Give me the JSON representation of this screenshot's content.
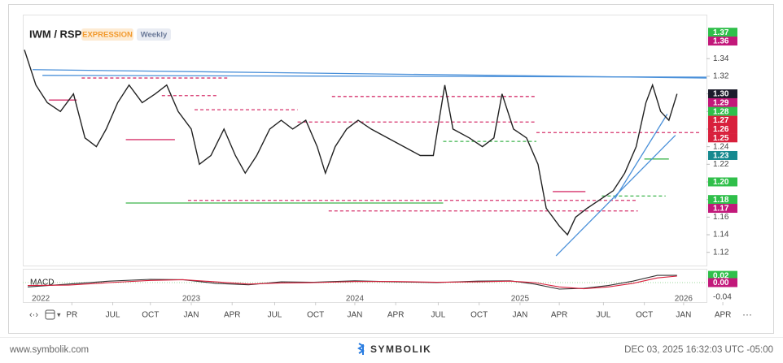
{
  "chart_data": {
    "type": "line",
    "title": "IWM / RSP",
    "badges": [
      "EXPRESSION",
      "Weekly"
    ],
    "xlim": [
      2021.97,
      2026.15
    ],
    "ylim": [
      1.105,
      1.39
    ],
    "yticks": [
      1.12,
      1.14,
      1.16,
      1.18,
      {
        "value": 1.2,
        "label": "1.20"
      },
      1.22,
      1.24,
      1.26,
      1.28,
      {
        "value": 1.3,
        "label": "1.30"
      },
      1.32,
      1.34
    ],
    "xticks": [
      {
        "value": 2022.27,
        "label": "PR"
      },
      {
        "value": 2022.52,
        "label": "JUL"
      },
      {
        "value": 2022.75,
        "label": "OCT"
      },
      {
        "value": 2023.0,
        "label": "JAN"
      },
      {
        "value": 2023.25,
        "label": "APR"
      },
      {
        "value": 2023.51,
        "label": "JUL"
      },
      {
        "value": 2023.76,
        "label": "OCT"
      },
      {
        "value": 2024.0,
        "label": "JAN"
      },
      {
        "value": 2024.25,
        "label": "APR"
      },
      {
        "value": 2024.51,
        "label": "JUL"
      },
      {
        "value": 2024.76,
        "label": "OCT"
      },
      {
        "value": 2025.01,
        "label": "JAN"
      },
      {
        "value": 2025.25,
        "label": "APR"
      },
      {
        "value": 2025.52,
        "label": "JUL"
      },
      {
        "value": 2025.77,
        "label": "OCT"
      },
      {
        "value": 2026.01,
        "label": "JAN"
      },
      {
        "value": 2026.25,
        "label": "APR"
      }
    ],
    "x_year_ticks": [
      {
        "value": 2022.08,
        "label": "2022"
      },
      {
        "value": 2023.0,
        "label": "2023"
      },
      {
        "value": 2024.0,
        "label": "2024"
      },
      {
        "value": 2025.01,
        "label": "2025"
      },
      {
        "value": 2026.01,
        "label": "2026"
      }
    ],
    "x": [
      2021.98,
      2022.05,
      2022.12,
      2022.2,
      2022.28,
      2022.35,
      2022.42,
      2022.48,
      2022.55,
      2022.62,
      2022.7,
      2022.78,
      2022.85,
      2022.92,
      2023.0,
      2023.05,
      2023.12,
      2023.2,
      2023.27,
      2023.33,
      2023.4,
      2023.48,
      2023.55,
      2023.62,
      2023.7,
      2023.77,
      2023.82,
      2023.88,
      2023.95,
      2024.02,
      2024.1,
      2024.2,
      2024.3,
      2024.4,
      2024.48,
      2024.55,
      2024.6,
      2024.7,
      2024.78,
      2024.85,
      2024.9,
      2024.97,
      2025.05,
      2025.12,
      2025.17,
      2025.25,
      2025.3,
      2025.35,
      2025.42,
      2025.5,
      2025.58,
      2025.65,
      2025.72,
      2025.78,
      2025.82,
      2025.87,
      2025.92,
      2025.97
    ],
    "series": [
      {
        "name": "IWM / RSP",
        "color": "#222222",
        "values": [
          1.35,
          1.31,
          1.29,
          1.28,
          1.3,
          1.25,
          1.24,
          1.26,
          1.29,
          1.31,
          1.29,
          1.3,
          1.31,
          1.28,
          1.26,
          1.22,
          1.23,
          1.26,
          1.23,
          1.21,
          1.23,
          1.26,
          1.27,
          1.26,
          1.27,
          1.24,
          1.21,
          1.24,
          1.26,
          1.27,
          1.26,
          1.25,
          1.24,
          1.23,
          1.23,
          1.31,
          1.26,
          1.25,
          1.24,
          1.25,
          1.3,
          1.26,
          1.25,
          1.22,
          1.17,
          1.15,
          1.14,
          1.16,
          1.17,
          1.18,
          1.19,
          1.21,
          1.24,
          1.29,
          1.31,
          1.28,
          1.27,
          1.3
        ]
      }
    ],
    "price_markers": {
      "values": [
        1.37,
        1.36,
        1.3,
        1.29,
        1.28,
        1.27,
        1.26,
        1.25,
        1.23,
        1.2,
        1.18,
        1.17
      ],
      "value_labels": [
        "1.37",
        "1.36",
        "1.30",
        "1.29",
        "1.28",
        "1.27",
        "1.26",
        "1.25",
        "1.23",
        "1.20",
        "1.18",
        "1.17"
      ],
      "colors": [
        "#2fbf4a",
        "#c2187a",
        "#1c1c2c",
        "#c2187a",
        "#2fbf4a",
        "#d8203c",
        "#d8203c",
        "#d8203c",
        "#15898f",
        "#2fbf4a",
        "#2fbf4a",
        "#c2187a"
      ]
    },
    "levels": [
      {
        "y": 1.318,
        "x": [
          2022.33,
          2023.22
        ],
        "color": "#d6336c",
        "dash": true
      },
      {
        "y": 1.298,
        "x": [
          2022.82,
          2023.16
        ],
        "color": "#d6336c",
        "dash": true
      },
      {
        "y": 1.282,
        "x": [
          2023.02,
          2023.65
        ],
        "color": "#d6336c",
        "dash": true
      },
      {
        "y": 1.268,
        "x": [
          2023.65,
          2025.11
        ],
        "color": "#d6336c",
        "dash": true
      },
      {
        "y": 1.297,
        "x": [
          2023.86,
          2025.11
        ],
        "color": "#d6336c",
        "dash": true
      },
      {
        "y": 1.256,
        "x": [
          2025.11,
          2026.11
        ],
        "color": "#d6336c",
        "dash": true
      },
      {
        "y": 1.248,
        "x": [
          2022.6,
          2022.9
        ],
        "color": "#d6336c",
        "dash": false
      },
      {
        "y": 1.293,
        "x": [
          2022.13,
          2022.3
        ],
        "color": "#d6336c",
        "dash": false
      },
      {
        "y": 1.176,
        "x": [
          2022.6,
          2024.54
        ],
        "color": "#3cb44b",
        "dash": false
      },
      {
        "y": 1.246,
        "x": [
          2024.54,
          2025.11
        ],
        "color": "#3cb44b",
        "dash": true
      },
      {
        "y": 1.184,
        "x": [
          2025.51,
          2025.9
        ],
        "color": "#3cb44b",
        "dash": true
      },
      {
        "y": 1.226,
        "x": [
          2025.77,
          2025.92
        ],
        "color": "#3cb44b",
        "dash": false
      },
      {
        "y": 1.167,
        "x": [
          2023.84,
          2025.73
        ],
        "color": "#d6336c",
        "dash": true
      },
      {
        "y": 1.179,
        "x": [
          2022.98,
          2025.73
        ],
        "color": "#d6336c",
        "dash": true
      },
      {
        "y": 1.189,
        "x": [
          2025.21,
          2025.41
        ],
        "color": "#d6336c",
        "dash": false
      }
    ],
    "trendlines": [
      {
        "x": [
          2022.03,
          2026.15
        ],
        "y": [
          1.3275,
          1.318
        ],
        "color": "#4a90d9"
      },
      {
        "x": [
          2022.09,
          2026.15
        ],
        "y": [
          1.321,
          1.319
        ],
        "color": "#4a90d9"
      },
      {
        "x": [
          2025.23,
          2025.96
        ],
        "y": [
          1.116,
          1.253
        ],
        "color": "#4a90d9"
      },
      {
        "x": [
          2025.59,
          2025.91
        ],
        "y": [
          1.181,
          1.277
        ],
        "color": "#4a90d9"
      }
    ],
    "macd": {
      "label": "MACD",
      "ylim": [
        -0.054,
        0.036
      ],
      "yticks": [
        -0.04
      ],
      "x": [
        2022.0,
        2022.25,
        2022.5,
        2022.75,
        2022.95,
        2023.15,
        2023.35,
        2023.55,
        2023.75,
        2024.0,
        2024.25,
        2024.5,
        2024.75,
        2024.95,
        2025.1,
        2025.25,
        2025.4,
        2025.55,
        2025.7,
        2025.85,
        2025.97
      ],
      "series": [
        {
          "name": "MACD",
          "color": "#333333",
          "values": [
            -0.012,
            -0.004,
            0.004,
            0.009,
            0.008,
            -0.002,
            -0.006,
            0.002,
            0.001,
            0.005,
            0.002,
            0.0,
            0.004,
            0.005,
            -0.004,
            -0.018,
            -0.016,
            -0.008,
            0.004,
            0.02,
            0.02
          ]
        },
        {
          "name": "Signal",
          "color": "#d8203c",
          "values": [
            -0.008,
            -0.007,
            0.0,
            0.006,
            0.008,
            0.002,
            -0.004,
            -0.001,
            0.0,
            0.003,
            0.003,
            0.001,
            0.002,
            0.004,
            0.0,
            -0.012,
            -0.017,
            -0.012,
            -0.002,
            0.013,
            0.018
          ]
        }
      ],
      "markers": {
        "values": [
          0.02,
          0.0
        ],
        "value_labels": [
          "0.02",
          "0.00"
        ],
        "colors": [
          "#2fbf4a",
          "#c2187a"
        ]
      }
    },
    "footer": {
      "left": "www.symbolik.com",
      "brand": "SYMBOLIK",
      "right": "DEC 03, 2025 16:32:03 UTC -05:00"
    }
  }
}
